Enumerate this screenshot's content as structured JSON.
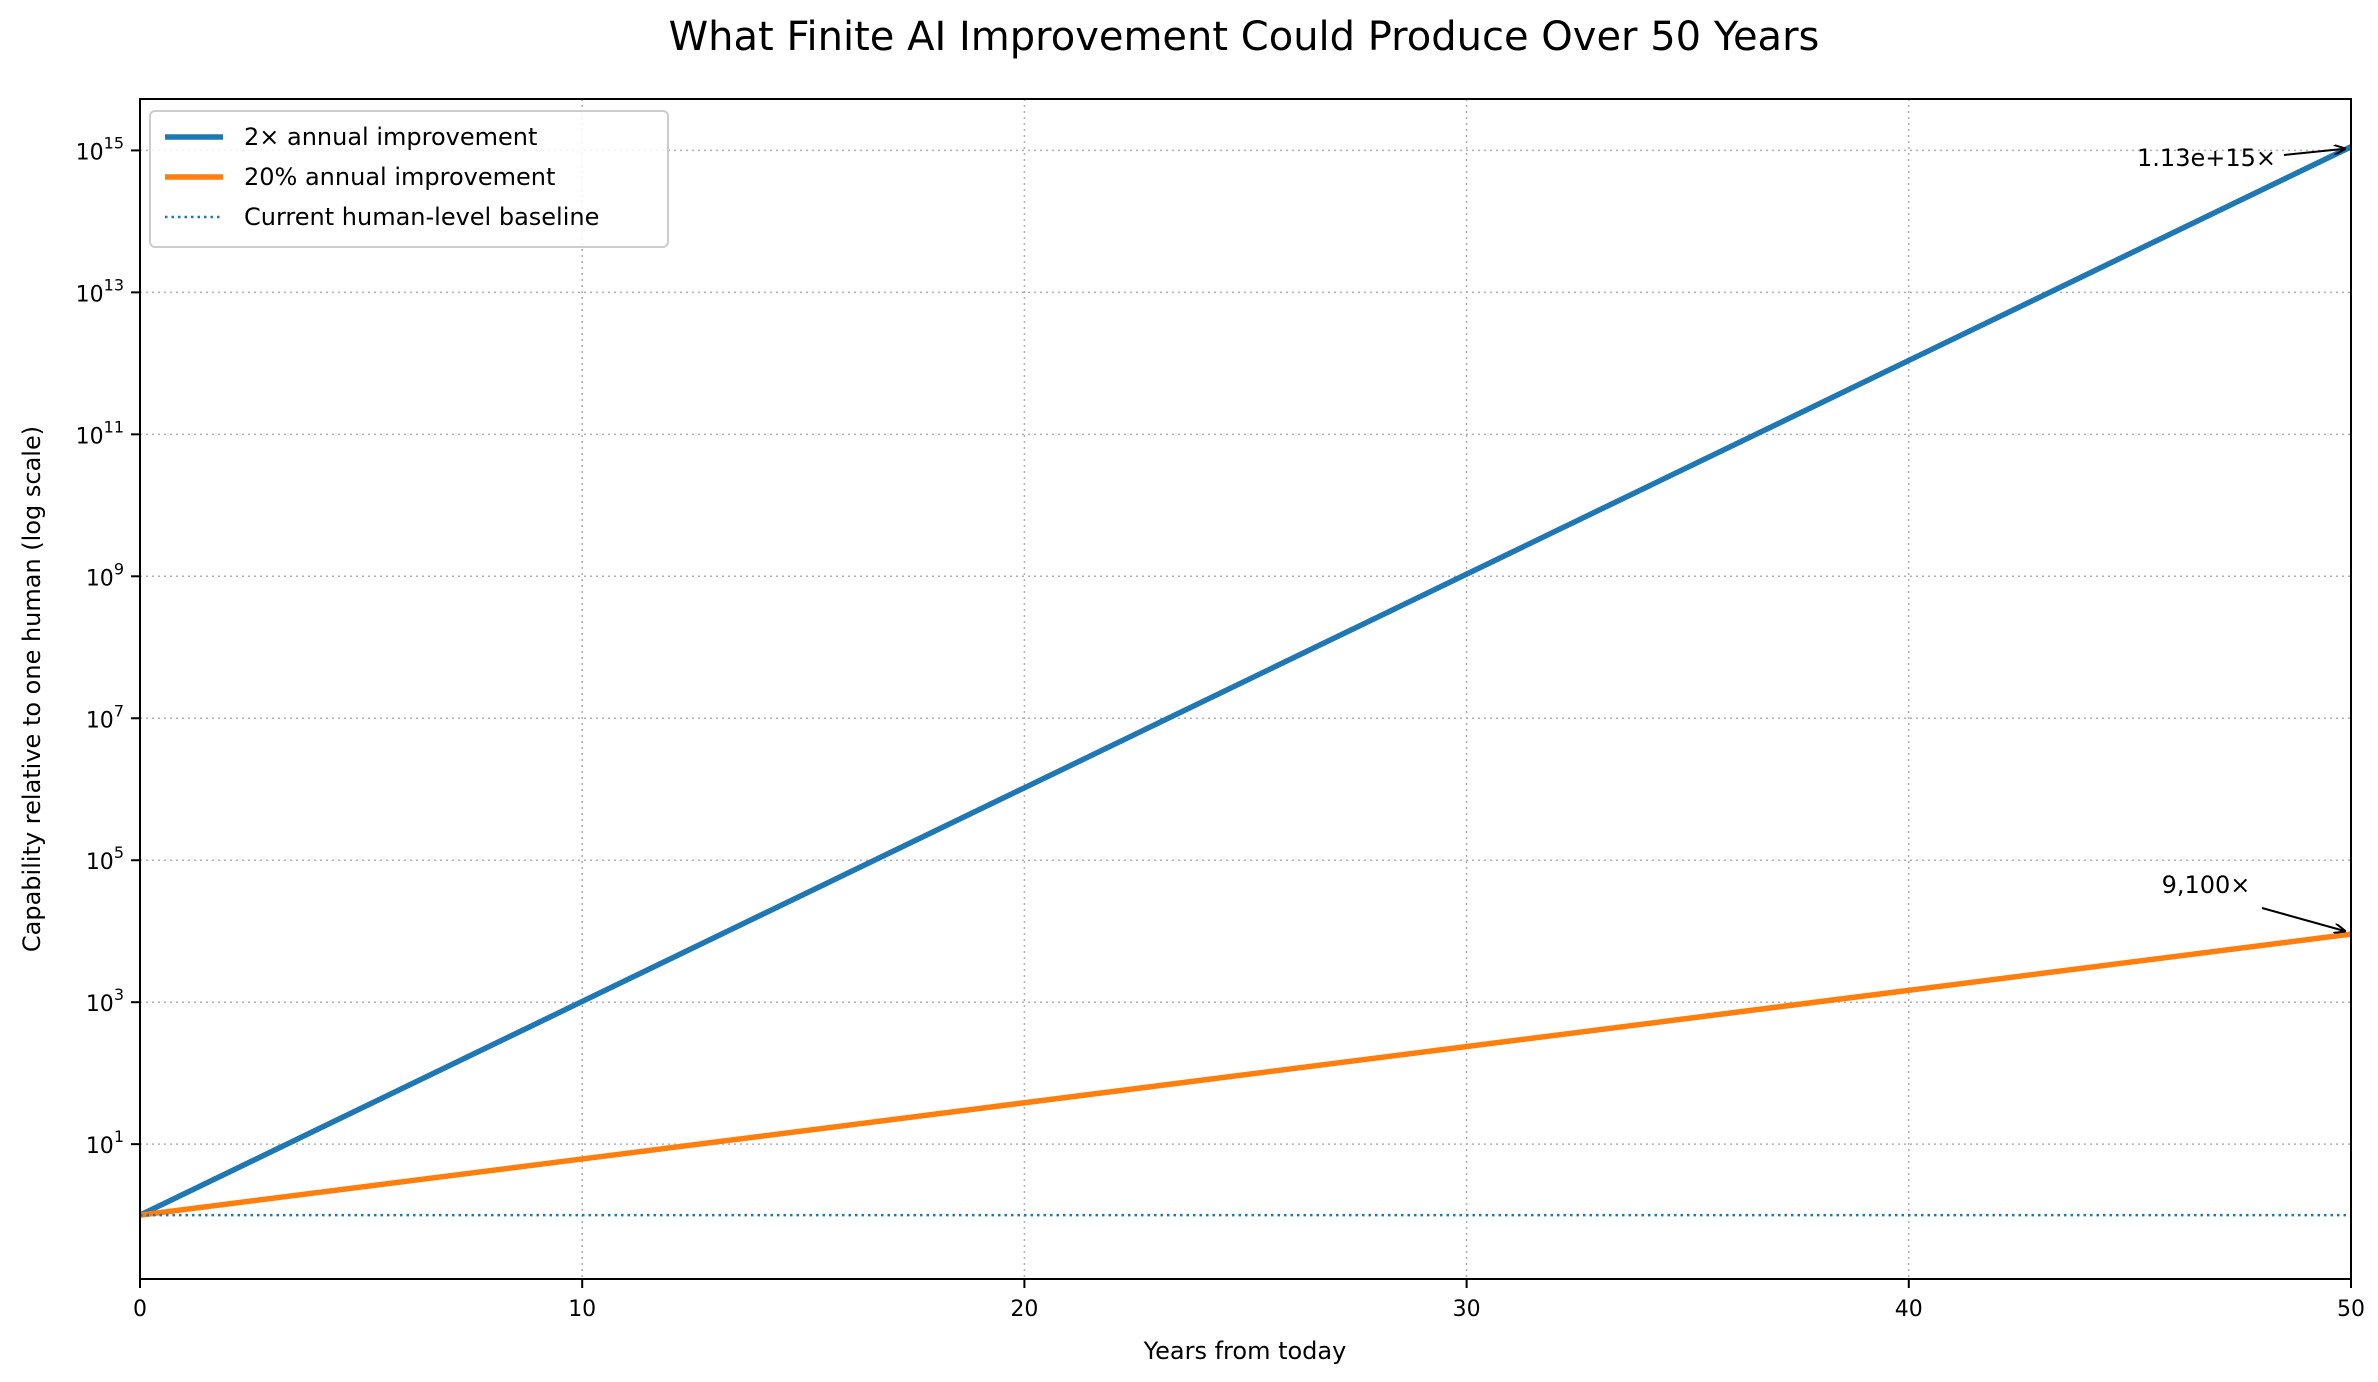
{
  "chart_data": {
    "type": "line",
    "title": "What Finite AI Improvement Could Produce Over 50 Years",
    "xlabel": "Years from today",
    "ylabel": "Capability relative to one human (log scale)",
    "xlim": [
      0,
      50
    ],
    "ylim": [
      0.126,
      5300000000000000.0
    ],
    "yscale": "log",
    "grid": true,
    "legend_position": "upper-left",
    "xticks": [
      "0",
      "10",
      "20",
      "30",
      "40",
      "50"
    ],
    "xtick_values": [
      0,
      10,
      20,
      30,
      40,
      50
    ],
    "yticks": [
      {
        "value": 10,
        "base": "10",
        "exp": "1"
      },
      {
        "value": 1000,
        "base": "10",
        "exp": "3"
      },
      {
        "value": 100000,
        "base": "10",
        "exp": "5"
      },
      {
        "value": 10000000,
        "base": "10",
        "exp": "7"
      },
      {
        "value": 1000000000,
        "base": "10",
        "exp": "9"
      },
      {
        "value": 100000000000,
        "base": "10",
        "exp": "11"
      },
      {
        "value": 10000000000000,
        "base": "10",
        "exp": "13"
      },
      {
        "value": 1000000000000000,
        "base": "10",
        "exp": "15"
      }
    ],
    "series": [
      {
        "name": "2× annual improvement",
        "color": "#1f77b4",
        "style": "solid",
        "x": [
          0,
          10,
          20,
          30,
          40,
          50
        ],
        "y": [
          1,
          1024,
          1048576,
          1073741824,
          1099511627776,
          1125899906842624
        ]
      },
      {
        "name": "20% annual improvement",
        "color": "#ff7f0e",
        "style": "solid",
        "x": [
          0,
          10,
          20,
          30,
          40,
          50
        ],
        "y": [
          1,
          6.19,
          38.3,
          237.4,
          1469.8,
          9100.4
        ]
      },
      {
        "name": "Current human-level baseline",
        "color": "#1f77b4",
        "style": "dotted",
        "x": [
          0,
          50
        ],
        "y": [
          1,
          1
        ]
      }
    ],
    "annotations": [
      {
        "text": "1.13e+15×",
        "x": 50,
        "y": 1125899906842624
      },
      {
        "text": "9,100×",
        "x": 50,
        "y": 9100
      }
    ]
  }
}
